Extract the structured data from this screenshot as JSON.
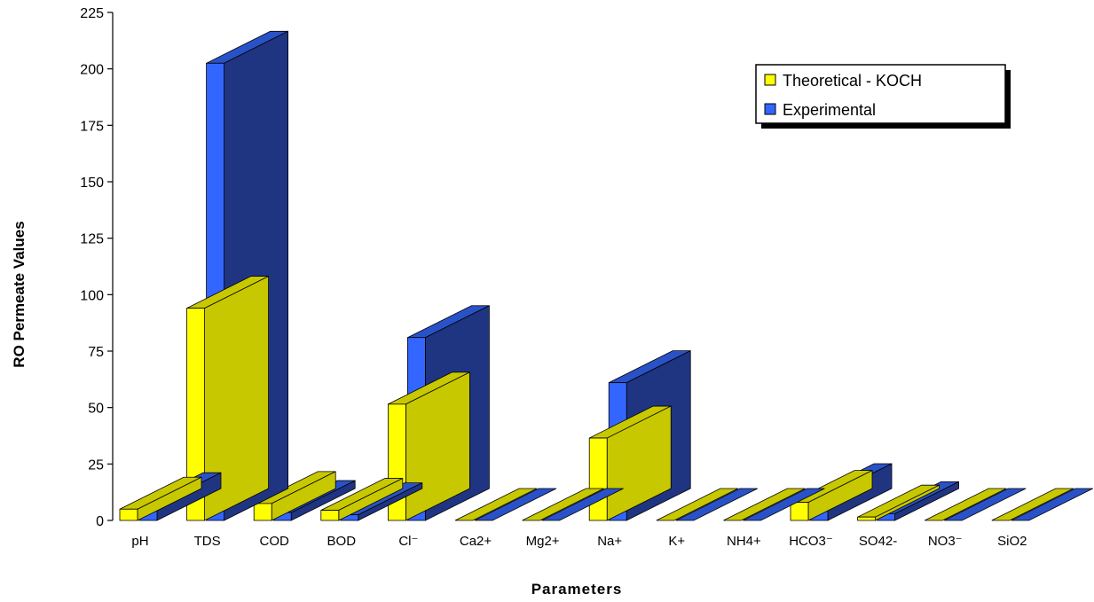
{
  "chart_data": {
    "type": "bar",
    "title": "",
    "xlabel": "Parameters",
    "ylabel": "RO Permeate Values",
    "ylim": [
      0,
      225
    ],
    "yticks": [
      0,
      25,
      50,
      75,
      100,
      125,
      150,
      175,
      200,
      225
    ],
    "categories": [
      "pH",
      "TDS",
      "COD",
      "BOD",
      "Cl⁻",
      "Ca2+",
      "Mg2+",
      "Na+",
      "K+",
      "NH4+",
      "HCO3⁻",
      "SO42-",
      "NO3⁻",
      "SiO2"
    ],
    "series": [
      {
        "name": "Theoretical - KOCH",
        "color": "#ffff00",
        "side_color": "#c8c800",
        "top_color": "#c8c800",
        "values": [
          5,
          94,
          7.5,
          4.5,
          51.5,
          0,
          0,
          36.5,
          0,
          0,
          8,
          1.5,
          0,
          0
        ]
      },
      {
        "name": "Experimental",
        "color": "#3366ff",
        "side_color": "#1f3582",
        "top_color": "#2a52c8",
        "values": [
          7,
          202.5,
          3.5,
          2.5,
          81,
          0,
          0,
          61,
          0,
          0,
          11,
          3,
          0,
          0
        ]
      }
    ],
    "grid": false,
    "legend_position": "top-right"
  }
}
